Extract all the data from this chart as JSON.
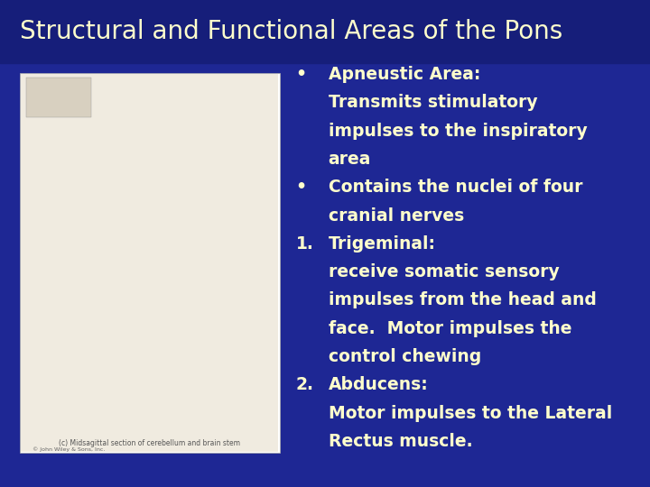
{
  "title": "Structural and Functional Areas of the Pons",
  "title_color": "#FFFFCC",
  "title_fontsize": 20,
  "bg_color": "#1e2794",
  "text_color": "#FFFFCC",
  "text_fontsize": 13.5,
  "bullet_blocks": [
    {
      "prefix": "•",
      "indent": 0.47,
      "lines": [
        "Apneustic Area:",
        "Transmits stimulatory",
        "impulses to the inspiratory",
        "area"
      ]
    },
    {
      "prefix": "•",
      "indent": 0.47,
      "lines": [
        "Contains the nuclei of four",
        "cranial nerves"
      ]
    },
    {
      "prefix": "1.",
      "indent": 0.47,
      "lines": [
        "Trigeminal:",
        "receive somatic sensory",
        "impulses from the head and",
        "face.  Motor impulses the",
        "control chewing"
      ]
    },
    {
      "prefix": "2.",
      "indent": 0.47,
      "lines": [
        "Abducens:",
        "Motor impulses to the Lateral",
        "Rectus muscle."
      ]
    }
  ]
}
